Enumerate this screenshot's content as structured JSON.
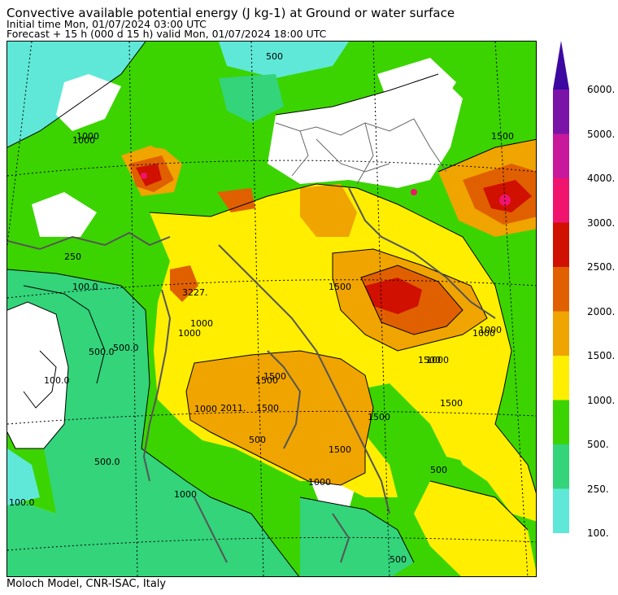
{
  "header": {
    "title": "Convective available potential energy (J kg-1) at Ground or water surface",
    "initial_time": "Initial time  Mon, 01/07/2024  03:00 UTC",
    "forecast": "Forecast  +  15 h  (000 d 15 h)  valid Mon, 01/07/2024 18:00 UTC"
  },
  "footer": {
    "credit": "Moloch Model, CNR-ISAC, Italy"
  },
  "colorbar": {
    "levels": [
      {
        "label": "100.",
        "color": "#5fe8d8"
      },
      {
        "label": "250.",
        "color": "#33d47a"
      },
      {
        "label": "500.",
        "color": "#3bd400"
      },
      {
        "label": "1000.",
        "color": "#ffee00"
      },
      {
        "label": "1500.",
        "color": "#f0a400"
      },
      {
        "label": "2000.",
        "color": "#e06000"
      },
      {
        "label": "2500.",
        "color": "#d01000"
      },
      {
        "label": "3000.",
        "color": "#f0146e"
      },
      {
        "label": "4000.",
        "color": "#c8189c"
      },
      {
        "label": "5000.",
        "color": "#7a14a8"
      },
      {
        "label": "6000.",
        "color": "#3c08a0"
      }
    ]
  },
  "contour_labels": [
    "500",
    "1000",
    "1500",
    "1500",
    "1500",
    "1500",
    "1500",
    "1000",
    "1000",
    "1000",
    "500.0",
    "100.0",
    "100.0",
    "2011.",
    "1500",
    "1500",
    "1000",
    "500",
    "500.0",
    "1000",
    "500",
    "100.0",
    "250",
    "1000",
    "1500",
    "500",
    "1000",
    "1500",
    "1000",
    "500.0",
    "3227.",
    "1000"
  ]
}
